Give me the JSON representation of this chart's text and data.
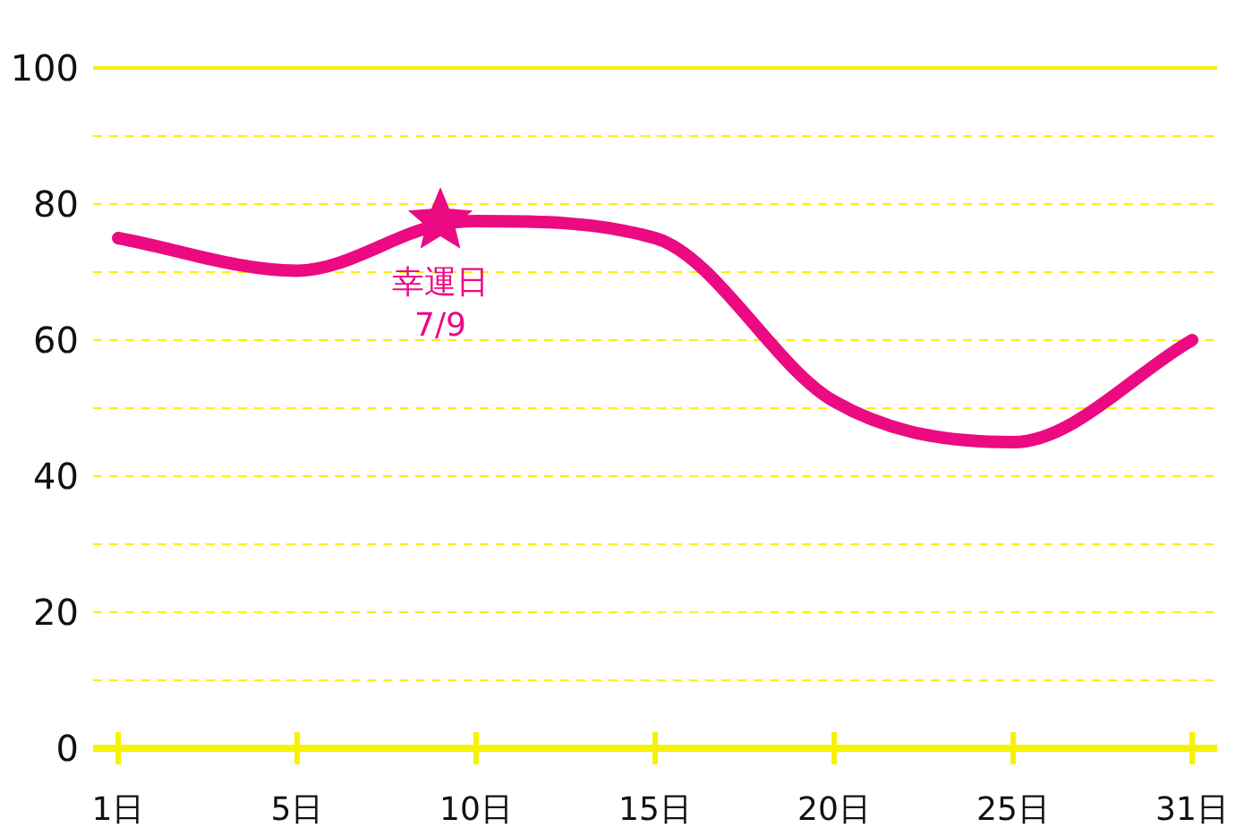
{
  "chart_data": {
    "type": "line",
    "categories": [
      "1日",
      null,
      null,
      null,
      null,
      "5日",
      null,
      null,
      null,
      null,
      "10日",
      null,
      null,
      null,
      null,
      "15日",
      null,
      null,
      null,
      null,
      "20日",
      null,
      null,
      null,
      null,
      "25日",
      null,
      null,
      null,
      null,
      "31日"
    ],
    "series": [
      {
        "color": "#eb0a82",
        "values": [
          75,
          null,
          null,
          null,
          null,
          70.2,
          null,
          null,
          null,
          77,
          77.5,
          null,
          null,
          null,
          null,
          75,
          null,
          null,
          null,
          null,
          51,
          null,
          null,
          null,
          null,
          45,
          null,
          null,
          null,
          null,
          60
        ]
      },
      {
        "type": "scatter",
        "marker": "star",
        "color": "#eb0a82",
        "values": [
          null,
          null,
          null,
          null,
          null,
          null,
          null,
          null,
          null,
          77.5,
          null,
          null,
          null,
          null,
          null,
          null,
          null,
          null,
          null,
          null,
          null,
          null,
          null,
          null,
          null,
          null,
          null,
          null,
          null,
          null,
          null
        ]
      }
    ],
    "ylim": [
      0,
      100
    ],
    "yticks": [
      0,
      {
        "value": 10,
        "label": null
      },
      20,
      {
        "value": 30,
        "label": null
      },
      40,
      {
        "value": 50,
        "label": null
      },
      60,
      {
        "value": 70,
        "label": null
      },
      80,
      {
        "value": 90,
        "label": null
      },
      100
    ],
    "grid": "y",
    "annotations": [
      "幸運日\n7/9"
    ]
  }
}
